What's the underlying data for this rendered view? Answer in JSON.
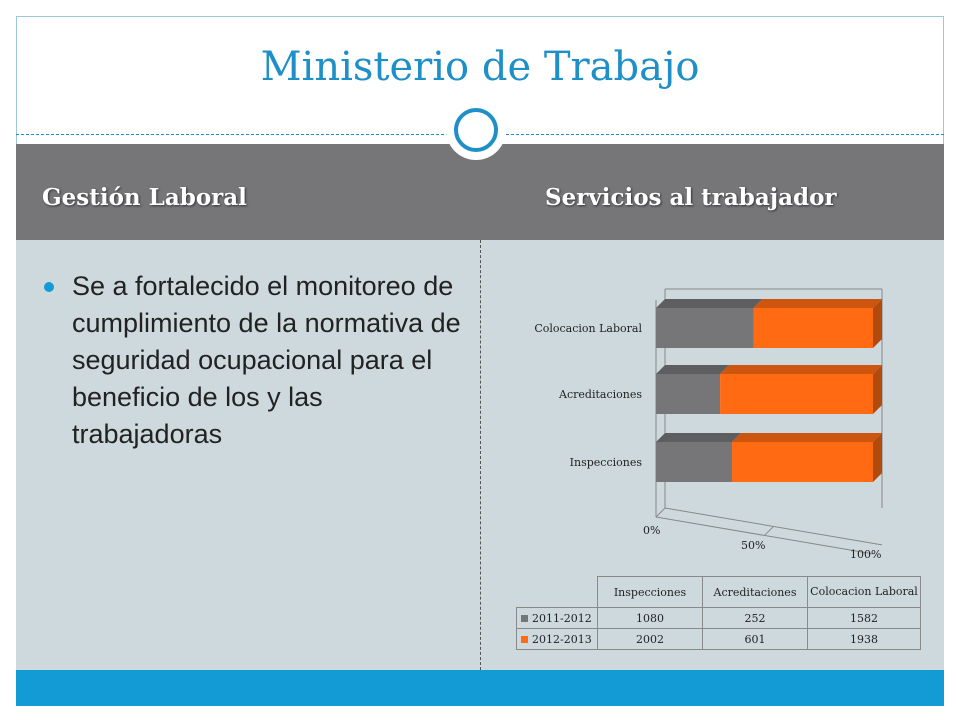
{
  "slide": {
    "title": "Ministerio de Trabajo",
    "col_left": "Gestión Laboral",
    "col_right": "Servicios al trabajador",
    "bullet": "Se a fortalecido el monitoreo de cumplimiento de la normativa de seguridad ocupacional para el beneficio de los y las trabajadoras"
  },
  "colors": {
    "title": "#1e8fc7",
    "accent": "#139bd6",
    "header_band": "#767679",
    "panel": "#ced9de"
  },
  "chart_data": {
    "type": "bar",
    "orientation": "horizontal",
    "stacked": "100%",
    "categories": [
      "Inspecciones",
      "Acreditaciones",
      "Colocacion Laboral"
    ],
    "series": [
      {
        "name": "2011-2012",
        "values": [
          1080,
          252,
          1582
        ],
        "color": "#767679"
      },
      {
        "name": "2012-2013",
        "values": [
          2002,
          601,
          1938
        ],
        "color": "#ff6a13"
      }
    ],
    "x_ticks": [
      "0%",
      "50%",
      "100%"
    ],
    "table_headers": [
      "Inspecciones",
      "Acreditaciones",
      "Colocacion Laboral"
    ]
  }
}
